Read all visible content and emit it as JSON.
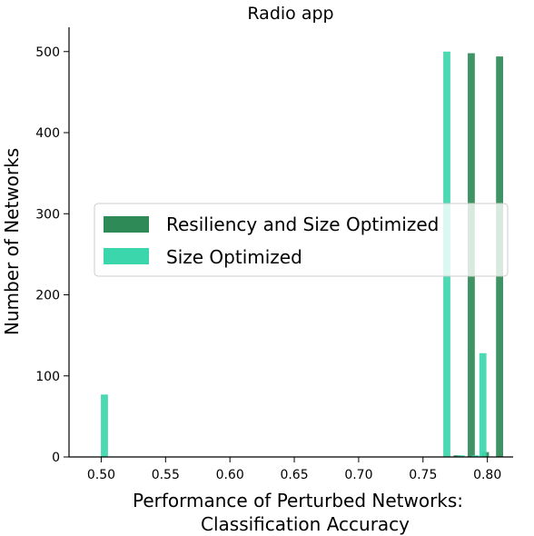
{
  "chart_data": {
    "type": "bar",
    "title": "Radio app",
    "xlabel_line1": "Performance of Perturbed Networks:",
    "xlabel_line2": "Classification Accuracy",
    "ylabel": "Number of Networks",
    "xlim": [
      0.475,
      0.82
    ],
    "ylim": [
      0,
      530
    ],
    "xticks": [
      "0.50",
      "0.55",
      "0.60",
      "0.65",
      "0.70",
      "0.75",
      "0.80"
    ],
    "yticks": [
      "0",
      "100",
      "200",
      "300",
      "400",
      "500"
    ],
    "grid": false,
    "legend_position": "center-right",
    "bin_width": 0.0055,
    "series": [
      {
        "name": "Resiliency and Size Optimized",
        "color": "#2e8b57",
        "bins": [
          {
            "x": 0.7765,
            "y": 2
          },
          {
            "x": 0.7875,
            "y": 498
          },
          {
            "x": 0.7985,
            "y": 6
          },
          {
            "x": 0.8095,
            "y": 494
          }
        ]
      },
      {
        "name": "Size Optimized",
        "color": "#3cd6ac",
        "bins": [
          {
            "x": 0.5025,
            "y": 77
          },
          {
            "x": 0.7685,
            "y": 500
          },
          {
            "x": 0.7795,
            "y": 2
          },
          {
            "x": 0.7905,
            "y": 2
          },
          {
            "x": 0.7965,
            "y": 128
          }
        ]
      }
    ]
  }
}
